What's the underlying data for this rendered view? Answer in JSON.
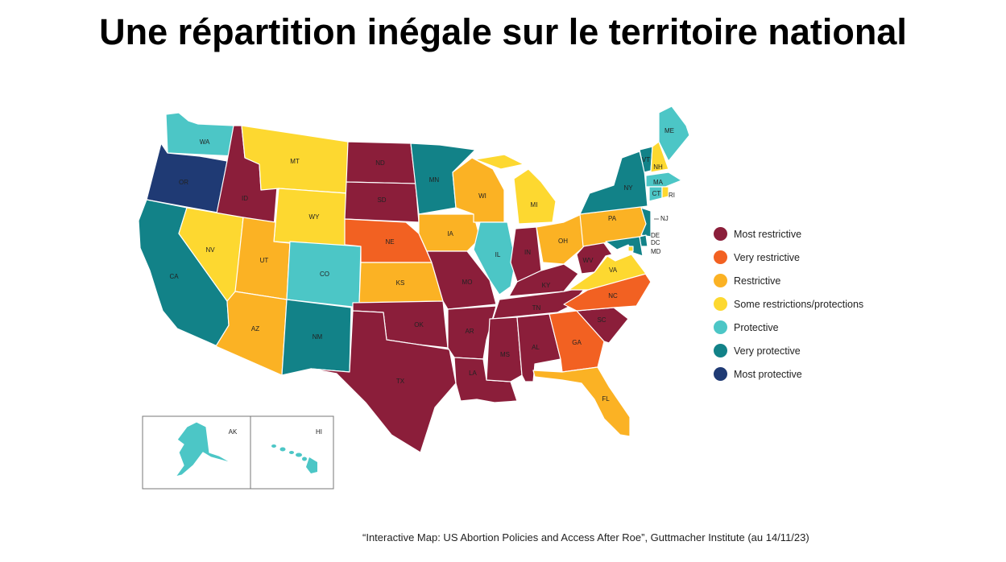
{
  "title": "Une répartition inégale sur le territoire national",
  "source": "“Interactive Map:  US Abortion  Policies  and Access After Roe”, Guttmacher Institute  (au 14/11/23)",
  "colors": {
    "most_restrictive": "#8B1E3A",
    "very_restrictive": "#F26122",
    "restrictive": "#FBB224",
    "some": "#FDD830",
    "protective": "#4CC6C6",
    "very_protective": "#128288",
    "most_protective": "#1F3A74"
  },
  "legend": [
    {
      "key": "most_restrictive",
      "label": "Most restrictive"
    },
    {
      "key": "very_restrictive",
      "label": "Very restrictive"
    },
    {
      "key": "restrictive",
      "label": "Restrictive"
    },
    {
      "key": "some",
      "label": "Some restrictions/protections"
    },
    {
      "key": "protective",
      "label": "Protective"
    },
    {
      "key": "very_protective",
      "label": "Very protective"
    },
    {
      "key": "most_protective",
      "label": "Most protective"
    }
  ],
  "states": {
    "WA": "protective",
    "OR": "most_protective",
    "CA": "very_protective",
    "ID": "most_restrictive",
    "NV": "some",
    "MT": "some",
    "WY": "some",
    "UT": "restrictive",
    "AZ": "restrictive",
    "CO": "protective",
    "NM": "very_protective",
    "ND": "most_restrictive",
    "SD": "most_restrictive",
    "NE": "very_restrictive",
    "KS": "restrictive",
    "OK": "most_restrictive",
    "TX": "most_restrictive",
    "MN": "very_protective",
    "IA": "restrictive",
    "MO": "most_restrictive",
    "AR": "most_restrictive",
    "LA": "most_restrictive",
    "WI": "restrictive",
    "IL": "protective",
    "MI": "some",
    "IN": "most_restrictive",
    "OH": "restrictive",
    "KY": "most_restrictive",
    "TN": "most_restrictive",
    "MS": "most_restrictive",
    "AL": "most_restrictive",
    "GA": "very_restrictive",
    "FL": "restrictive",
    "SC": "most_restrictive",
    "NC": "very_restrictive",
    "VA": "some",
    "WV": "most_restrictive",
    "PA": "restrictive",
    "NY": "very_protective",
    "VT": "very_protective",
    "NH": "some",
    "ME": "protective",
    "MA": "protective",
    "CT": "protective",
    "RI": "some",
    "NJ": "very_protective",
    "DE": "very_protective",
    "MD": "very_protective",
    "DC": "some",
    "AK": "protective",
    "HI": "protective"
  }
}
